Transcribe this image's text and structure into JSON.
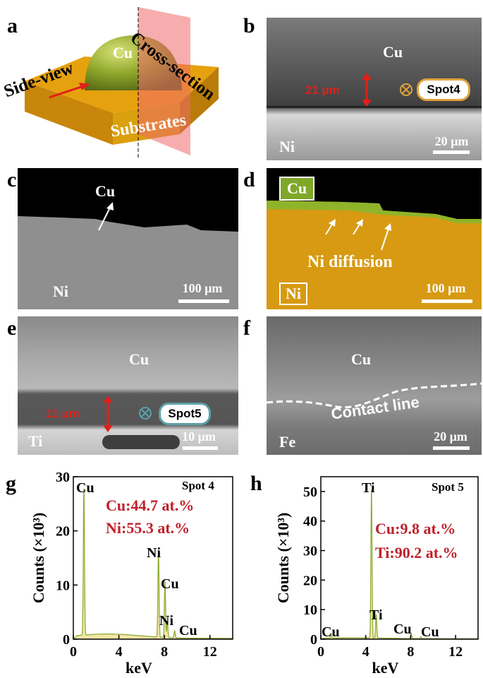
{
  "panels": {
    "a": {
      "label": "a",
      "cu": "Cu",
      "cross_section": "Cross-section",
      "side_view": "Side-view",
      "substrates": "Substrates"
    },
    "b": {
      "label": "b",
      "cu": "Cu",
      "thickness": "21 µm",
      "spot": "Spot4",
      "substrate": "Ni",
      "scale": "20 µm"
    },
    "c": {
      "label": "c",
      "cu": "Cu",
      "substrate": "Ni",
      "scale": "100 µm"
    },
    "d": {
      "label": "d",
      "cu_tag": "Cu",
      "ni_tag": "Ni",
      "diffusion": "Ni diffusion",
      "scale": "100 µm"
    },
    "e": {
      "label": "e",
      "cu": "Cu",
      "thickness": "11 µm",
      "spot": "Spot5",
      "substrate": "Ti",
      "scale": "10 µm"
    },
    "f": {
      "label": "f",
      "cu": "Cu",
      "contact": "Contact line",
      "substrate": "Fe",
      "scale": "20 µm"
    },
    "g": {
      "label": "g",
      "spot": "Spot 4",
      "comp1": "Cu:44.7 at.%",
      "comp2": "Ni:55.3 at.%",
      "peak_cu1": "Cu",
      "peak_ni1": "Ni",
      "peak_cu2": "Cu",
      "peak_ni2": "Ni",
      "peak_cu3": "Cu"
    },
    "h": {
      "label": "h",
      "spot": "Spot 5",
      "comp1": "Cu:9.8 at.%",
      "comp2": "Ti:90.2 at.%",
      "peak_ti1": "Ti",
      "peak_ti2": "Ti",
      "peak_cu1": "Cu",
      "peak_cu2": "Cu",
      "peak_cu3": "Cu"
    }
  },
  "chart_data": [
    {
      "type": "line",
      "id": "g",
      "xlabel": "keV",
      "ylabel": "Counts (×10³)",
      "xlim": [
        0,
        14
      ],
      "ylim": [
        0,
        30
      ],
      "xticks": [
        0,
        4,
        8,
        12
      ],
      "yticks": [
        0,
        10,
        20,
        30
      ],
      "peaks": [
        {
          "x": 0.93,
          "y": 27.5
        },
        {
          "x": 7.48,
          "y": 16.0
        },
        {
          "x": 8.05,
          "y": 10.5
        },
        {
          "x": 8.26,
          "y": 3.0
        },
        {
          "x": 8.9,
          "y": 1.3
        }
      ],
      "background": 0.8
    },
    {
      "type": "line",
      "id": "h",
      "xlabel": "keV",
      "ylabel": "Counts (×10³)",
      "xlim": [
        0,
        14
      ],
      "ylim": [
        0,
        55
      ],
      "xticks": [
        0,
        4,
        8,
        12
      ],
      "yticks": [
        0,
        10,
        20,
        30,
        40,
        50
      ],
      "peaks": [
        {
          "x": 0.93,
          "y": 1.5
        },
        {
          "x": 4.51,
          "y": 51.0
        },
        {
          "x": 4.93,
          "y": 8.0
        },
        {
          "x": 8.05,
          "y": 1.8
        },
        {
          "x": 8.9,
          "y": 0.6
        }
      ],
      "background": 0.3
    }
  ]
}
